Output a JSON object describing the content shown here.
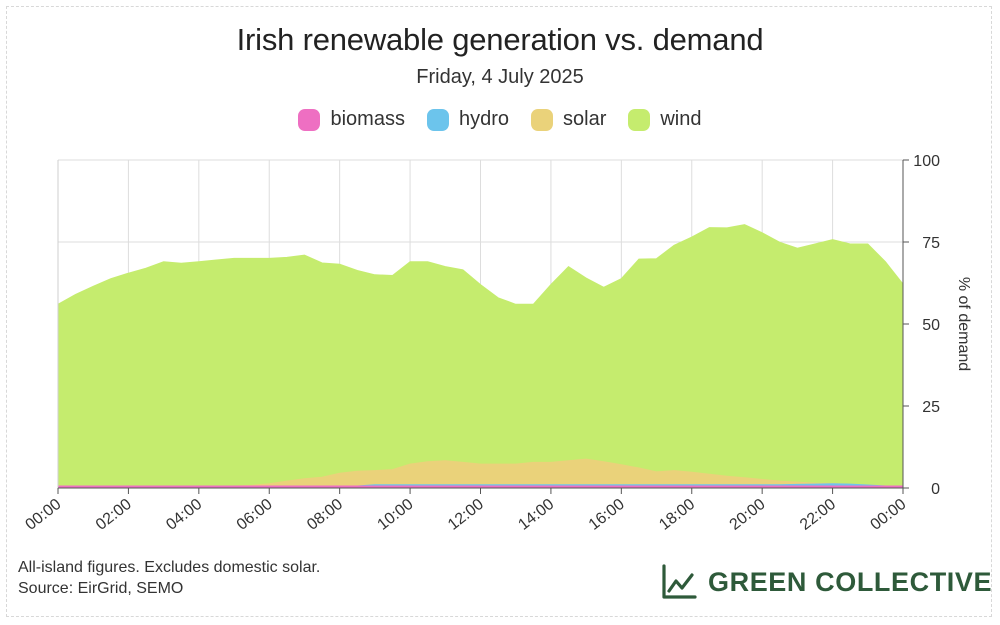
{
  "page": {
    "title": "Irish renewable generation vs. demand",
    "subtitle": "Friday, 4 July 2025",
    "notes": [
      "All-island figures. Excludes domestic solar.",
      "Source: EirGrid, SEMO"
    ],
    "logo_text": "GREEN COLLECTIVE",
    "logo_icon": "line-chart-icon"
  },
  "chart_data": {
    "type": "area",
    "stacked": true,
    "title": "Irish renewable generation vs. demand",
    "subtitle": "Friday, 4 July 2025",
    "ylabel": "% of demand",
    "xlabel": "",
    "ylim": [
      0,
      100
    ],
    "yticks": [
      "0",
      "25",
      "50",
      "75",
      "100"
    ],
    "xticks": [
      "00:00",
      "02:00",
      "04:00",
      "06:00",
      "08:00",
      "10:00",
      "12:00",
      "14:00",
      "16:00",
      "18:00",
      "20:00",
      "22:00",
      "00:00"
    ],
    "xlim": [
      0,
      24
    ],
    "grid": true,
    "legend_position": "top-center",
    "x": [
      0,
      0.5,
      1,
      1.5,
      2,
      2.5,
      3,
      3.5,
      4,
      4.5,
      5,
      5.5,
      6,
      6.5,
      7,
      7.5,
      8,
      8.5,
      9,
      9.5,
      10,
      10.5,
      11,
      11.5,
      12,
      12.5,
      13,
      13.5,
      14,
      14.5,
      15,
      15.5,
      16,
      16.5,
      17,
      17.5,
      18,
      18.5,
      19,
      19.5,
      20,
      20.5,
      21,
      21.5,
      22,
      22.5,
      23,
      23.5,
      24
    ],
    "series": [
      {
        "name": "biomass",
        "color": "#ee6fc2",
        "values": [
          0.6,
          0.6,
          0.6,
          0.6,
          0.6,
          0.6,
          0.6,
          0.6,
          0.6,
          0.6,
          0.6,
          0.6,
          0.6,
          0.6,
          0.6,
          0.6,
          0.6,
          0.6,
          0.6,
          0.6,
          0.6,
          0.6,
          0.6,
          0.6,
          0.6,
          0.6,
          0.6,
          0.6,
          0.6,
          0.6,
          0.6,
          0.6,
          0.6,
          0.6,
          0.6,
          0.6,
          0.6,
          0.6,
          0.6,
          0.6,
          0.6,
          0.6,
          0.6,
          0.6,
          0.6,
          0.6,
          0.6,
          0.6,
          0.6
        ]
      },
      {
        "name": "hydro",
        "color": "#6cc4ec",
        "values": [
          0,
          0,
          0,
          0,
          0,
          0,
          0,
          0,
          0,
          0,
          0,
          0,
          0,
          0,
          0,
          0,
          0,
          0,
          0.4,
          0.4,
          0.4,
          0.4,
          0.4,
          0.4,
          0.4,
          0.4,
          0.4,
          0.4,
          0.4,
          0.4,
          0.4,
          0.4,
          0.4,
          0.4,
          0.4,
          0.4,
          0.4,
          0.4,
          0.4,
          0.4,
          0.4,
          0.4,
          0.5,
          0.6,
          0.7,
          0.6,
          0.3,
          0,
          0
        ]
      },
      {
        "name": "solar",
        "color": "#ead27a",
        "values": [
          0,
          0,
          0,
          0,
          0,
          0,
          0,
          0,
          0,
          0,
          0,
          0.2,
          0.7,
          1.5,
          2.2,
          2.7,
          3.9,
          4.5,
          4.3,
          4.6,
          6.3,
          7.0,
          7.3,
          6.8,
          6.3,
          6.3,
          6.3,
          6.8,
          6.8,
          7.3,
          7.8,
          7.0,
          6.1,
          5.1,
          3.9,
          4.3,
          3.8,
          3.2,
          2.6,
          2.1,
          1.6,
          1.1,
          0.7,
          0.3,
          0.1,
          0,
          0,
          0,
          0
        ]
      },
      {
        "name": "wind",
        "color": "#c5ec6e",
        "values": [
          55.4,
          58.4,
          60.9,
          63.2,
          64.9,
          66.4,
          68.4,
          67.9,
          68.4,
          68.9,
          69.4,
          69.2,
          68.7,
          68.2,
          68.2,
          65.3,
          63.7,
          61.2,
          59.7,
          59.2,
          61.7,
          61.0,
          59.2,
          58.7,
          54.7,
          50.7,
          48.7,
          48.2,
          54.2,
          59.2,
          55.2,
          53.2,
          56.7,
          63.7,
          65.0,
          68.7,
          71.7,
          75.2,
          75.7,
          77.2,
          75.2,
          72.8,
          71.3,
          72.9,
          74.3,
          73.2,
          73.5,
          68.4,
          61.6
        ]
      }
    ]
  }
}
